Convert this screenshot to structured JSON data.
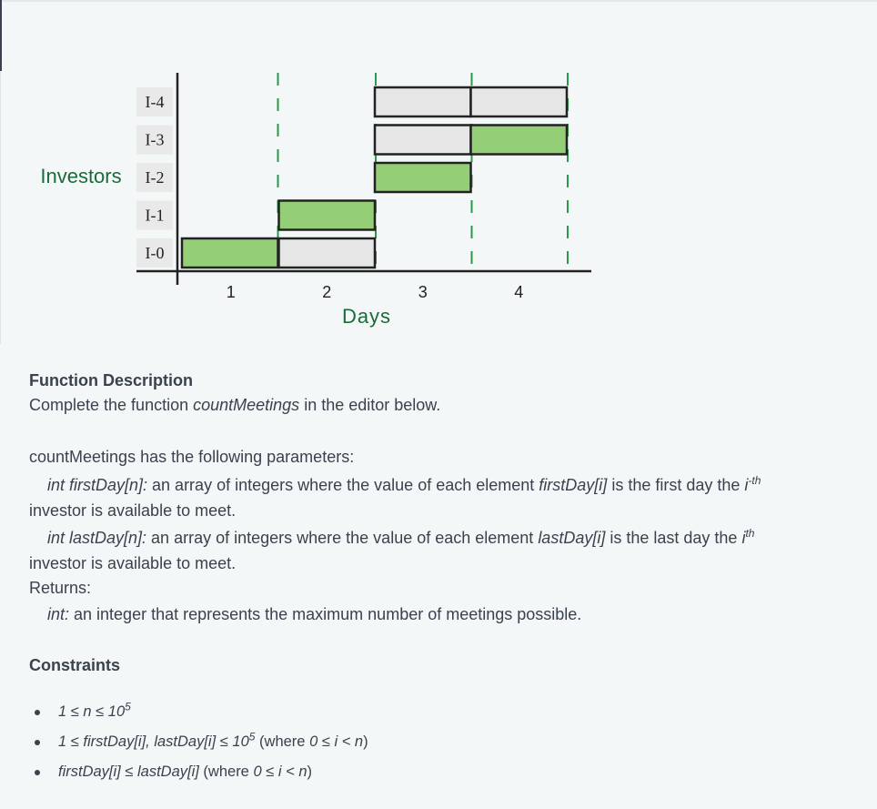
{
  "figure": {
    "y_axis_title": "Investors",
    "x_axis_title": "Days",
    "rows": [
      "I-0",
      "I-1",
      "I-2",
      "I-3",
      "I-4"
    ],
    "day_ticks": [
      "1",
      "2",
      "3",
      "4"
    ],
    "colors": {
      "assigned": "#94ce76",
      "available": "#e6e6e6",
      "divider": "#2a9a4a",
      "axis_title": "#1b6b3a",
      "label_bg": "#e9e9e9"
    },
    "intervals": [
      {
        "investor": "I-0",
        "first_day": 1,
        "last_day": 2,
        "meeting_day": 1
      },
      {
        "investor": "I-1",
        "first_day": 2,
        "last_day": 2,
        "meeting_day": 2
      },
      {
        "investor": "I-2",
        "first_day": 3,
        "last_day": 3,
        "meeting_day": 3
      },
      {
        "investor": "I-3",
        "first_day": 3,
        "last_day": 4,
        "meeting_day": 4
      },
      {
        "investor": "I-4",
        "first_day": 3,
        "last_day": 4,
        "meeting_day": null
      }
    ]
  },
  "function_description": {
    "heading": "Function Description",
    "line_prefix": "Complete the function ",
    "function_name": "countMeetings",
    "line_suffix": " in the editor below."
  },
  "parameters": {
    "intro": "countMeetings has the following parameters:",
    "first_day": {
      "decl": "int firstDay[n]:",
      "text_a": " an array of integers where the value of each element ",
      "element": "firstDay[i]",
      "text_b": " is the first day the ",
      "ordinal_base": "i",
      "ordinal_sup": "-th",
      "continuation": "investor is available to meet."
    },
    "last_day": {
      "decl": "int lastDay[n]:",
      "text_a": " an array of integers where the value of each element ",
      "element": "lastDay[i]",
      "text_b": " is the last day the ",
      "ordinal_base": "i",
      "ordinal_sup": "th",
      "continuation": "investor is available to meet."
    },
    "returns_label": "Returns:",
    "returns_type": "int:",
    "returns_text": " an integer that represents the maximum number of meetings possible."
  },
  "constraints": {
    "heading": "Constraints",
    "c1": {
      "expr": "1 ≤ n ≤ 10",
      "sup": "5"
    },
    "c2": {
      "expr": "1 ≤ firstDay[i], lastDay[i] ≤ 10",
      "sup": "5",
      "where_a": " (where ",
      "where_expr": "0 ≤ i < n",
      "where_b": ")"
    },
    "c3": {
      "expr": "firstDay[i]  ≤ lastDay[i]",
      "where_a": " (where ",
      "where_expr": "0 ≤ i < n",
      "where_b": ")"
    }
  }
}
